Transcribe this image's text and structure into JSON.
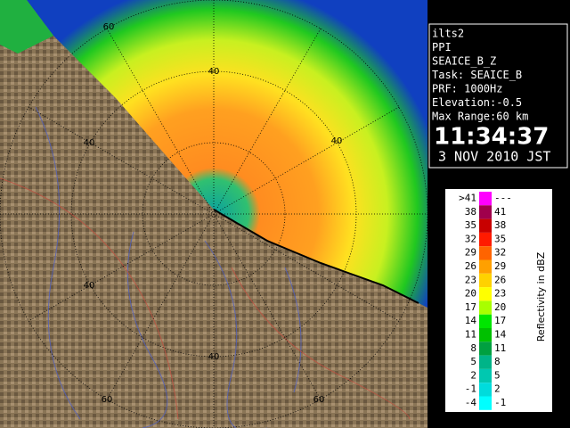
{
  "info": {
    "lines": [
      "ilts2",
      "PPI",
      "SEAICE_B_Z",
      "Task: SEAICE_B",
      "PRF: 1000Hz",
      "Elevation:-0.5",
      "Max Range:60 km"
    ],
    "time": "11:34:37",
    "date": "3 NOV 2010 JST"
  },
  "map": {
    "range_labels": [
      "60",
      "40",
      "40",
      "40",
      "40",
      "40",
      "60",
      "60"
    ]
  },
  "legend": {
    "title": "Reflectivity in dBZ",
    "rows": [
      {
        "low": ">41",
        "high": "---",
        "color": "#ff00ff"
      },
      {
        "low": "38",
        "high": "41",
        "color": "#a0004c"
      },
      {
        "low": "35",
        "high": "38",
        "color": "#c80000"
      },
      {
        "low": "32",
        "high": "35",
        "color": "#ff1a00"
      },
      {
        "low": "29",
        "high": "32",
        "color": "#ff6400"
      },
      {
        "low": "26",
        "high": "29",
        "color": "#ffa000"
      },
      {
        "low": "23",
        "high": "26",
        "color": "#ffd200"
      },
      {
        "low": "20",
        "high": "23",
        "color": "#ffff00"
      },
      {
        "low": "17",
        "high": "20",
        "color": "#a8ff00"
      },
      {
        "low": "14",
        "high": "17",
        "color": "#00e600"
      },
      {
        "low": "11",
        "high": "14",
        "color": "#00c000"
      },
      {
        "low": "8",
        "high": "11",
        "color": "#00a040"
      },
      {
        "low": "5",
        "high": "8",
        "color": "#00b488"
      },
      {
        "low": "2",
        "high": "5",
        "color": "#00c8b0"
      },
      {
        "low": "-1",
        "high": "2",
        "color": "#00dcdc"
      },
      {
        "low": "-4",
        "high": "-1",
        "color": "#00ffff"
      }
    ]
  }
}
